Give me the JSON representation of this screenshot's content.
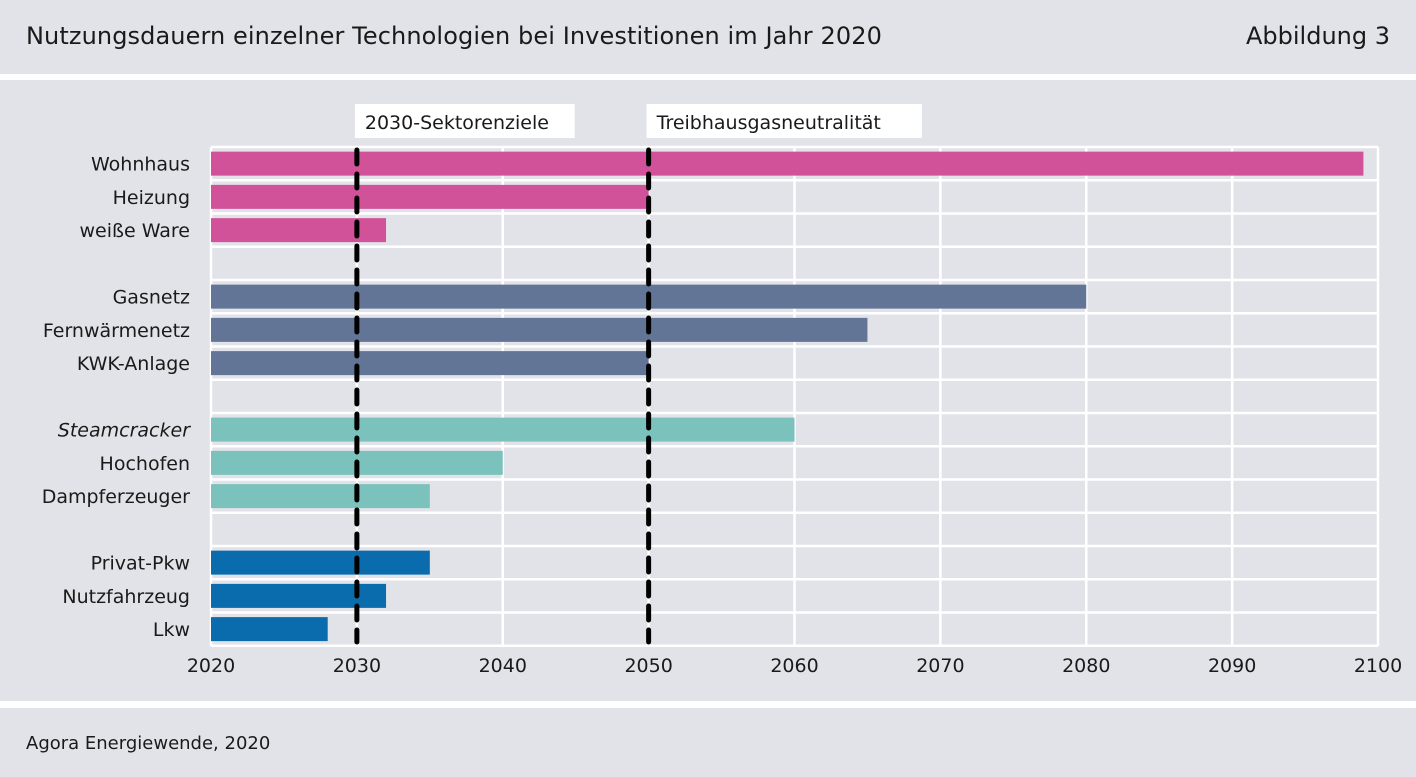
{
  "header": {
    "title": "Nutzungsdauern einzelner Technologien bei Investitionen im Jahr 2020",
    "figure_label": "Abbildung 3"
  },
  "footer": {
    "source": "Agora Energiewende, 2020"
  },
  "chart_data": {
    "type": "bar",
    "orientation": "horizontal",
    "title": "Nutzungsdauern einzelner Technologien bei Investitionen im Jahr 2020",
    "xlim": [
      2020,
      2100
    ],
    "xticks": [
      2020,
      2030,
      2040,
      2050,
      2060,
      2070,
      2080,
      2090,
      2100
    ],
    "grid": true,
    "groups": [
      {
        "color": "#d2529a",
        "items": [
          {
            "label": "Wohnhaus",
            "start": 2020,
            "end": 2099
          },
          {
            "label": "Heizung",
            "start": 2020,
            "end": 2050
          },
          {
            "label": "weiße Ware",
            "start": 2020,
            "end": 2032
          }
        ]
      },
      {
        "color": "#627597",
        "items": [
          {
            "label": "Gasnetz",
            "start": 2020,
            "end": 2080
          },
          {
            "label": "Fernwärmenetz",
            "start": 2020,
            "end": 2065
          },
          {
            "label": "KWK-Anlage",
            "start": 2020,
            "end": 2050
          }
        ]
      },
      {
        "color": "#7bc2bd",
        "items": [
          {
            "label": "Steamcracker",
            "start": 2020,
            "end": 2060,
            "italic": true
          },
          {
            "label": "Hochofen",
            "start": 2020,
            "end": 2040
          },
          {
            "label": "Dampferzeuger",
            "start": 2020,
            "end": 2035
          }
        ]
      },
      {
        "color": "#0b6cad",
        "items": [
          {
            "label": "Privat-Pkw",
            "start": 2020,
            "end": 2035
          },
          {
            "label": "Nutzfahrzeug",
            "start": 2020,
            "end": 2032
          },
          {
            "label": "Lkw",
            "start": 2020,
            "end": 2028
          }
        ]
      }
    ],
    "reference_lines": [
      {
        "x": 2030,
        "label": "2030-Sektorenziele"
      },
      {
        "x": 2050,
        "label": "Treibhausgasneutralität"
      }
    ]
  }
}
